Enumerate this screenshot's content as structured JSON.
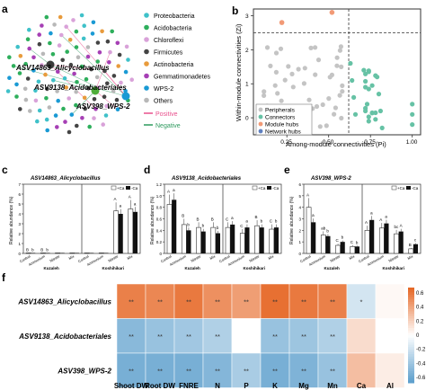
{
  "panel_labels": {
    "a": "a",
    "b": "b",
    "c": "c",
    "d": "d",
    "e": "e",
    "f": "f"
  },
  "network": {
    "legend": [
      {
        "label": "Proteobacteria",
        "color": "#3fc1c9"
      },
      {
        "label": "Acidobacteria",
        "color": "#2eaf5c"
      },
      {
        "label": "Chloroflexi",
        "color": "#d9a2d9"
      },
      {
        "label": "Firmicutes",
        "color": "#444444"
      },
      {
        "label": "Actinobacteria",
        "color": "#e89b3c"
      },
      {
        "label": "Gemmatimonadetes",
        "color": "#a63fb5"
      },
      {
        "label": "WPS-2",
        "color": "#1a9ad4"
      },
      {
        "label": "Others",
        "color": "#b8b8b8"
      }
    ],
    "edge_legend": [
      {
        "label": "Positive",
        "color": "#e8508c"
      },
      {
        "label": "Negative",
        "color": "#2e9a5e"
      }
    ],
    "hubs": [
      {
        "label": "ASV14863_Alicyclobacillus",
        "color": "#3a3a3a"
      },
      {
        "label": "ASV9138_Acidobacteriales",
        "color": "#4fae3a"
      },
      {
        "label": "ASV398_WPS-2",
        "color": "#1a9ad4"
      }
    ]
  },
  "zipi": {
    "xlabel": "Among-module connectivities (Pi)",
    "ylabel": "Within-module connectivities (Zi)",
    "xticks": [
      "0.25",
      "0.50",
      "0.75",
      "1.00"
    ],
    "yticks": [
      "0",
      "1",
      "2",
      "3"
    ],
    "legend": [
      {
        "label": "Peripherals",
        "color": "#c4c4c4"
      },
      {
        "label": "Connectors",
        "color": "#66c2a5"
      },
      {
        "label": "Module hubs",
        "color": "#f29a76"
      },
      {
        "label": "Network hubs",
        "color": "#5e7fbf"
      }
    ]
  },
  "bars": {
    "ylabel": "Relative abundance (%)",
    "treatments": [
      "Control",
      "Ammonium",
      "Nitrate",
      "Mix"
    ],
    "soils": [
      "Kuzaleh",
      "Koshihikari"
    ],
    "series_labels": [
      "+Ca",
      "-Ca"
    ],
    "panels": [
      {
        "title": "ASV14863_Alicyclobacillus",
        "yticks": [
          "0",
          "1",
          "2",
          "3",
          "4",
          "5",
          "6",
          "7"
        ],
        "ymax": 7,
        "kuz_ca": [
          0.05,
          0.05,
          0.05,
          0.05
        ],
        "kuz_no": [
          0.05,
          0.05,
          0.05,
          0.05
        ],
        "kosh_ca": [
          0.05,
          0.05,
          4.3,
          4.5
        ],
        "kosh_no": [
          0.05,
          0.05,
          4.0,
          4.2
        ],
        "kuz_letters": [
          [
            "B",
            "b"
          ],
          [
            "B",
            "b"
          ],
          [
            "",
            ""
          ],
          [
            "",
            ""
          ]
        ],
        "kosh_letters": [
          [
            "",
            ""
          ],
          [
            "",
            ""
          ],
          [
            "A",
            "a"
          ],
          [
            "A",
            "a"
          ]
        ]
      },
      {
        "title": "ASV9138_Acidobacteriales",
        "yticks": [
          "0",
          "0.2",
          "0.4",
          "0.6",
          "0.8",
          "1.0",
          "1.2"
        ],
        "ymax": 1.2,
        "kuz_ca": [
          0.85,
          0.5,
          0.45,
          0.45
        ],
        "kuz_no": [
          0.93,
          0.4,
          0.38,
          0.35
        ],
        "kosh_ca": [
          0.45,
          0.35,
          0.48,
          0.42
        ],
        "kosh_no": [
          0.5,
          0.45,
          0.45,
          0.45
        ],
        "kuz_letters": [
          [
            "A",
            "a"
          ],
          [
            "B",
            "b"
          ],
          [
            "B",
            "b"
          ],
          [
            "B",
            "b"
          ]
        ],
        "kosh_letters": [
          [
            "C",
            "a"
          ],
          [
            "C",
            "a"
          ],
          [
            "B",
            "b"
          ],
          [
            "C",
            "b"
          ]
        ]
      },
      {
        "title": "ASV398_WPS-2",
        "yticks": [
          "0",
          "1",
          "2",
          "3",
          "4",
          "5",
          "6"
        ],
        "ymax": 6,
        "kuz_ca": [
          4.0,
          1.6,
          0.7,
          0.6
        ],
        "kuz_no": [
          2.7,
          1.5,
          1.0,
          0.6
        ],
        "kosh_ca": [
          2.0,
          2.2,
          1.7,
          0.4
        ],
        "kosh_no": [
          2.9,
          2.6,
          1.9,
          0.8
        ],
        "kuz_letters": [
          [
            "A",
            "a"
          ],
          [
            "ab",
            "b"
          ],
          [
            "C",
            "b"
          ],
          [
            "C",
            "b"
          ]
        ],
        "kosh_letters": [
          [
            "A",
            "a"
          ],
          [
            "A",
            "a"
          ],
          [
            "bc",
            "A"
          ],
          [
            "B",
            "c"
          ]
        ]
      }
    ]
  },
  "heatmap": {
    "rows": [
      "ASV14863_Alicyclobacillus",
      "ASV9138_Acidobacteriales",
      "ASV398_WPS-2"
    ],
    "columns": [
      "Shoot DW",
      "Root DW",
      "FNRE",
      "N",
      "P",
      "K",
      "Mg",
      "Mn",
      "Ca",
      "Al"
    ],
    "values": [
      [
        0.55,
        0.52,
        0.58,
        0.48,
        0.42,
        0.62,
        0.58,
        0.55,
        -0.18,
        0.03
      ],
      [
        -0.48,
        -0.42,
        -0.38,
        -0.32,
        0.0,
        -0.42,
        -0.4,
        -0.32,
        0.15,
        0.0
      ],
      [
        -0.55,
        -0.55,
        -0.55,
        -0.5,
        -0.35,
        -0.55,
        -0.52,
        -0.42,
        0.28,
        0.08
      ]
    ],
    "stars": [
      [
        "**",
        "**",
        "**",
        "**",
        "**",
        "**",
        "**",
        "**",
        "*",
        ""
      ],
      [
        "**",
        "**",
        "**",
        "**",
        "",
        "**",
        "**",
        "**",
        "",
        ""
      ],
      [
        "**",
        "**",
        "**",
        "**",
        "**",
        "**",
        "**",
        "**",
        "",
        ""
      ]
    ],
    "colorbar_ticks": [
      "0.6",
      "0.4",
      "0.2",
      "0",
      "-0.2",
      "-0.4",
      "-0.6"
    ]
  }
}
